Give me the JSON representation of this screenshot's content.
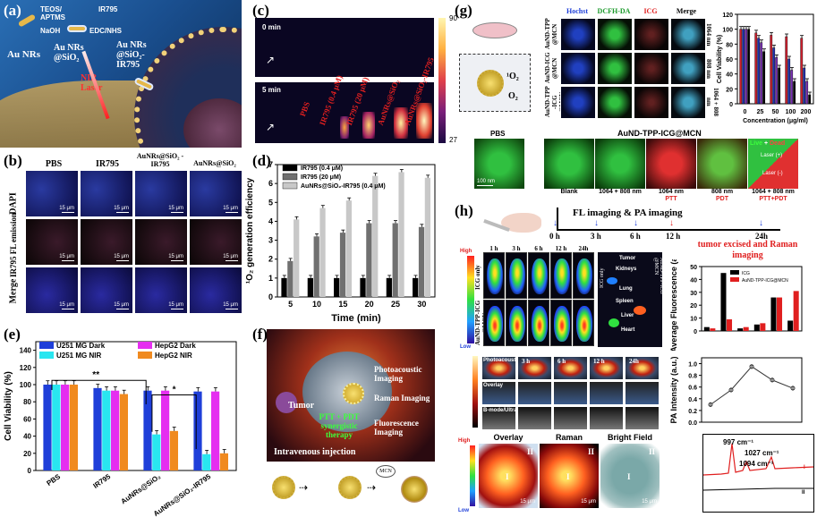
{
  "panels": {
    "a": {
      "label": "(a)",
      "texts": [
        "TEOS/ APTMS",
        "NaOH",
        "IR795",
        "EDC/NHS",
        "Au NRs",
        "Au NRs @SiO₂",
        "Au NRs @SiO₂- IR795",
        "NIR Laser"
      ]
    },
    "b": {
      "label": "(b)",
      "cols": [
        "PBS",
        "IR795",
        "AuNRs@SiO₂ -IR795",
        "AuNRs@SiO₂"
      ],
      "rows": [
        "DAPI",
        "IR795 FL emission",
        "Merge"
      ],
      "scale": "15 μm"
    },
    "c": {
      "label": "(c)",
      "t0": "0 min",
      "t5": "5 min",
      "lanes": [
        "PBS",
        "IR795 (0.4 μM)",
        "IR795 (20 μM)",
        "AuNRs@SiO₂",
        "AuNRs@SiO₂-IR795"
      ],
      "cbar_max": "90",
      "cbar_min": "27"
    },
    "d": {
      "label": "(d)"
    },
    "e": {
      "label": "(e)"
    },
    "f": {
      "label": "(f)",
      "texts": [
        "Tumor",
        "PTT + PDT synergistic therapy",
        "Photoacoustic Imaging",
        "Raman Imaging",
        "Fluorescence Imaging",
        "Intravenous injection",
        "MCN"
      ]
    },
    "g": {
      "label": "(g)",
      "cols": [
        "Hochst",
        "DCFH-DA",
        "ICG",
        "Merge"
      ],
      "rows": [
        "AuND-TPP @MCN",
        "AuND-ICG @MCN",
        "AuND-TPP -ICG @MCN"
      ],
      "rowside": [
        "1064 nm",
        "808 nm",
        "1064 + 808 nm"
      ],
      "o2a": "¹O₂",
      "o2b": "O₂",
      "bottom_pbs": "PBS",
      "bottom_title": "AuND-TPP-ICG@MCN",
      "live": "Live",
      "plus": " + ",
      "dead": "Dead",
      "laser_on": "Laser (+)",
      "laser_off": "Laser (-)",
      "scale": "100 nm",
      "bottom_labels": [
        "Blank",
        "1064 + 808 nm",
        "1064 nm",
        "808 nm",
        "1064 + 808 nm"
      ],
      "bottom_sub": [
        "",
        "",
        "PTT",
        "PDT",
        "PTT+PDT"
      ]
    },
    "h": {
      "label": "(h)",
      "timeline_title": "FL imaging & PA imaging",
      "times": [
        "0 h",
        "3 h",
        "6 h",
        "12 h",
        "24h"
      ],
      "tumor_text": "tumor excised and Raman imaging",
      "fl_times": [
        "1 h",
        "3 h",
        "6 h",
        "12 h",
        "24h"
      ],
      "side_top": "ICG only",
      "side_bottom": "AuND-TPP-ICG @MCN",
      "high": "High",
      "low": "Low",
      "organs": [
        "Tumor",
        "Kidneys",
        "Lung",
        "Spleen",
        "Liver",
        "Heart"
      ],
      "organ_side_a": "ICG only",
      "organ_side_b": "AuND-TPP-ICG @MCN",
      "pa_rows": [
        "Photoacoustic",
        "Overlay",
        "B-mode/Ultrasonic"
      ],
      "pa_times": [
        "0 h",
        "3 h",
        "6 h",
        "12 h",
        "24h"
      ],
      "raman_titles": [
        "Overlay",
        "Raman",
        "Bright Field"
      ],
      "roman": [
        "I",
        "II"
      ],
      "scale": "15 μm",
      "raman_peaks": [
        "997 cm⁻¹",
        "1027 cm⁻¹",
        "1094 cm⁻¹"
      ]
    }
  },
  "chart_data": [
    {
      "type": "bar",
      "panel": "d",
      "ylabel": "¹O₂ generation efficiency",
      "xlabel": "Time (min)",
      "categories": [
        "5",
        "10",
        "15",
        "20",
        "25",
        "30"
      ],
      "ylim": [
        0,
        7
      ],
      "yticks": [
        "0",
        "1",
        "2",
        "3",
        "4",
        "5",
        "6",
        "7"
      ],
      "series": [
        {
          "name": "IR795 (0.4 μM)",
          "color": "#000000",
          "values": [
            1.0,
            1.0,
            1.0,
            1.0,
            1.0,
            1.0
          ]
        },
        {
          "name": "IR795 (20 μM)",
          "color": "#707070",
          "values": [
            1.9,
            3.2,
            3.4,
            3.9,
            3.9,
            3.7
          ]
        },
        {
          "name": "AuNRs@SiO₂-IR795 (0.4 μM)",
          "color": "#c8c8c8",
          "values": [
            4.1,
            4.7,
            5.1,
            6.4,
            6.6,
            6.3
          ]
        }
      ]
    },
    {
      "type": "bar",
      "panel": "e",
      "ylabel": "Cell Viability (%)",
      "categories": [
        "PBS",
        "IR795",
        "AuNRs@SiO₂",
        "AuNRs@SiO₂-IR795"
      ],
      "ylim": [
        0,
        150
      ],
      "yticks": [
        "0",
        "20",
        "40",
        "60",
        "80",
        "100",
        "120",
        "140"
      ],
      "annotations": [
        "**",
        "*"
      ],
      "series": [
        {
          "name": "U251 MG Dark",
          "color": "#1f3fd9",
          "values": [
            100,
            96,
            93,
            92
          ]
        },
        {
          "name": "U251 MG NIR",
          "color": "#29e6f0",
          "values": [
            100,
            93,
            42,
            19
          ]
        },
        {
          "name": "HepG2 Dark",
          "color": "#e52ef0",
          "values": [
            100,
            93,
            93,
            92
          ]
        },
        {
          "name": "HepG2 NIR",
          "color": "#f08a1f",
          "values": [
            100,
            89,
            46,
            20
          ]
        }
      ]
    },
    {
      "type": "bar",
      "panel": "g",
      "ylabel": "Cell Viability (%)",
      "xlabel": "Concentration (μg/ml)",
      "categories": [
        "0",
        "25",
        "50",
        "100",
        "200"
      ],
      "ylim": [
        0,
        120
      ],
      "yticks": [
        "0",
        "20",
        "40",
        "60",
        "80",
        "100",
        "120"
      ],
      "series": [
        {
          "name": "",
          "color": "#d01f2e",
          "values": [
            100,
            95,
            92,
            90,
            88
          ]
        },
        {
          "name": "",
          "color": "#1e2fb0",
          "values": [
            100,
            88,
            75,
            60,
            48
          ]
        },
        {
          "name": "",
          "color": "#7a2fb5",
          "values": [
            100,
            82,
            62,
            45,
            30
          ]
        },
        {
          "name": "",
          "color": "#000000",
          "values": [
            100,
            70,
            48,
            30,
            12
          ]
        }
      ]
    },
    {
      "type": "bar",
      "panel": "h-fluor",
      "ylabel": "Average Fluorescence (a.u.)",
      "ylim": [
        0,
        50
      ],
      "yticks": [
        "0",
        "10",
        "20",
        "30",
        "40",
        "50"
      ],
      "series": [
        {
          "name": "ICG",
          "color": "#000000",
          "values": [
            3,
            45,
            2,
            5,
            26,
            8
          ]
        },
        {
          "name": "AuND-TPP-ICG@MCN",
          "color": "#e01f1f",
          "values": [
            2,
            9,
            3,
            6,
            26,
            31
          ]
        }
      ]
    },
    {
      "type": "line",
      "panel": "h-pa",
      "ylabel": "PA Intensity (a.u.)",
      "x": [
        "0 h",
        "3 h",
        "6 h",
        "12 h",
        "24h"
      ],
      "values": [
        0.3,
        0.55,
        0.95,
        0.72,
        0.58
      ],
      "ylim": [
        0,
        1.1
      ],
      "yticks": [
        "0.0",
        "0.2",
        "0.4",
        "0.6",
        "0.8",
        "1.0"
      ]
    }
  ]
}
